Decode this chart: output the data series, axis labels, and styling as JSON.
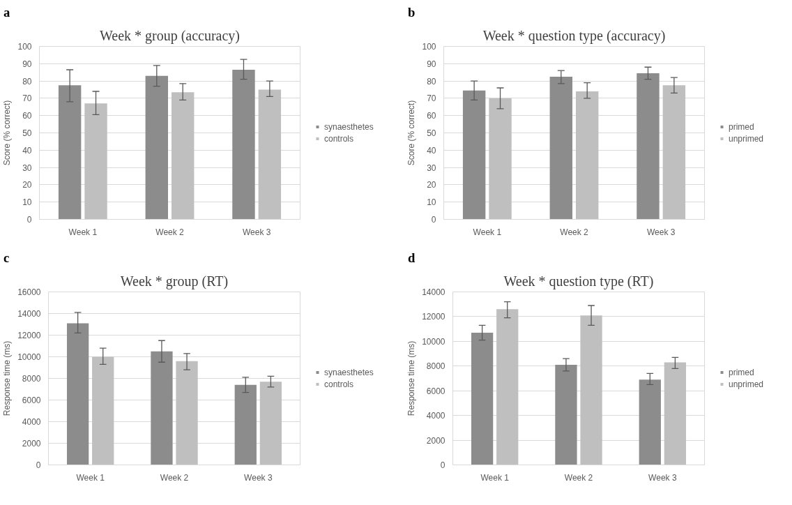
{
  "chart_data": [
    {
      "type": "bar",
      "title": "Week * group (accuracy)",
      "annotations": [
        "a"
      ],
      "ylabel": "Score (% correct)",
      "categories": [
        "Week 1",
        "Week 2",
        "Week 3"
      ],
      "ylim": [
        0,
        100
      ],
      "yticks": [
        0,
        10,
        20,
        30,
        40,
        50,
        60,
        70,
        80,
        90,
        100
      ],
      "grid": "y",
      "legend": "right",
      "series": [
        {
          "name": "synaesthetes",
          "color": "#8c8c8c",
          "values": [
            77.5,
            83,
            86.5
          ],
          "errors": [
            [
              68,
              86.5
            ],
            [
              77,
              89
            ],
            [
              81,
              92.5
            ]
          ]
        },
        {
          "name": "controls",
          "color": "#bfbfbf",
          "values": [
            67,
            73.5,
            75
          ],
          "errors": [
            [
              60.5,
              74
            ],
            [
              69,
              78.5
            ],
            [
              71,
              80
            ]
          ]
        }
      ]
    },
    {
      "type": "bar",
      "title": "Week * question type (accuracy)",
      "annotations": [
        "b"
      ],
      "ylabel": "Score (% correct)",
      "categories": [
        "Week 1",
        "Week 2",
        "Week 3"
      ],
      "ylim": [
        0,
        100
      ],
      "yticks": [
        0,
        10,
        20,
        30,
        40,
        50,
        60,
        70,
        80,
        90,
        100
      ],
      "grid": "y",
      "legend": "right",
      "series": [
        {
          "name": "primed",
          "color": "#8c8c8c",
          "values": [
            74.5,
            82.5,
            84.5
          ],
          "errors": [
            [
              69,
              80
            ],
            [
              78.5,
              86
            ],
            [
              81,
              88
            ]
          ]
        },
        {
          "name": "unprimed",
          "color": "#bfbfbf",
          "values": [
            70,
            74,
            77.5
          ],
          "errors": [
            [
              64,
              76
            ],
            [
              70,
              79
            ],
            [
              73,
              82
            ]
          ]
        }
      ]
    },
    {
      "type": "bar",
      "title": "Week * group (RT)",
      "annotations": [
        "c"
      ],
      "ylabel": "Response time (ms)",
      "categories": [
        "Week 1",
        "Week 2",
        "Week 3"
      ],
      "ylim": [
        0,
        16000
      ],
      "yticks": [
        0,
        2000,
        4000,
        6000,
        8000,
        10000,
        12000,
        14000,
        16000
      ],
      "grid": "y",
      "legend": "right",
      "series": [
        {
          "name": "synaesthetes",
          "color": "#8c8c8c",
          "values": [
            13100,
            10500,
            7400
          ],
          "errors": [
            [
              12200,
              14100
            ],
            [
              9500,
              11500
            ],
            [
              6700,
              8100
            ]
          ]
        },
        {
          "name": "controls",
          "color": "#bfbfbf",
          "values": [
            10000,
            9600,
            7700
          ],
          "errors": [
            [
              9300,
              10800
            ],
            [
              8800,
              10300
            ],
            [
              7200,
              8200
            ]
          ]
        }
      ]
    },
    {
      "type": "bar",
      "title": "Week * question type (RT)",
      "annotations": [
        "d"
      ],
      "ylabel": "Response time (ms)",
      "categories": [
        "Week 1",
        "Week 2",
        "Week 3"
      ],
      "ylim": [
        0,
        14000
      ],
      "yticks": [
        0,
        2000,
        4000,
        6000,
        8000,
        10000,
        12000,
        14000
      ],
      "grid": "y",
      "legend": "right",
      "series": [
        {
          "name": "primed",
          "color": "#8c8c8c",
          "values": [
            10700,
            8100,
            6900
          ],
          "errors": [
            [
              10100,
              11300
            ],
            [
              7600,
              8600
            ],
            [
              6500,
              7400
            ]
          ]
        },
        {
          "name": "unprimed",
          "color": "#bfbfbf",
          "values": [
            12600,
            12100,
            8300
          ],
          "errors": [
            [
              11900,
              13200
            ],
            [
              11300,
              12900
            ],
            [
              7800,
              8700
            ]
          ]
        }
      ]
    }
  ]
}
